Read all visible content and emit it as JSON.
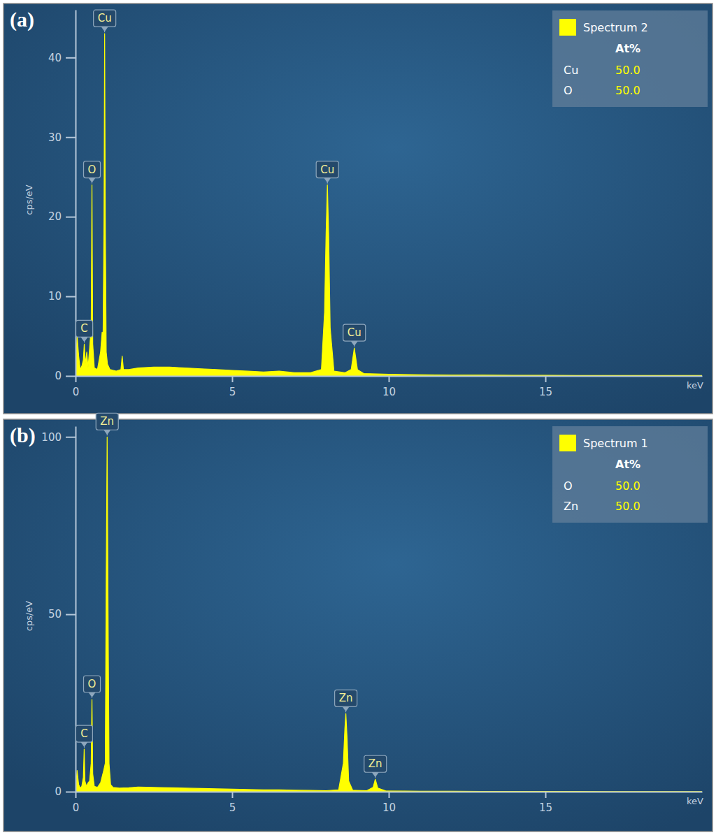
{
  "chart_data": [
    {
      "type": "area",
      "title": "(a)",
      "x_label": "keV",
      "y_label": "cps/eV",
      "x": [
        0,
        0.05,
        0.1,
        0.15,
        0.2,
        0.25,
        0.28,
        0.31,
        0.36,
        0.4,
        0.45,
        0.5,
        0.525,
        0.55,
        0.6,
        0.7,
        0.8,
        0.85,
        0.88,
        0.91,
        0.93,
        0.95,
        0.98,
        1.02,
        1.1,
        1.3,
        1.45,
        1.49,
        1.53,
        1.7,
        2,
        2.5,
        3,
        3.5,
        4,
        4.5,
        5,
        5.5,
        6,
        6.5,
        7,
        7.5,
        7.85,
        7.95,
        8.0,
        8.04,
        8.08,
        8.13,
        8.25,
        8.6,
        8.8,
        8.9,
        9.0,
        9.2,
        9.6,
        10,
        11,
        12,
        13,
        14,
        15,
        16,
        17,
        18,
        19,
        20
      ],
      "series": [
        {
          "name": "Spectrum 2",
          "color": "#ffff00",
          "values": [
            0,
            5.2,
            2.5,
            0.8,
            1.2,
            2,
            4,
            1.5,
            3,
            1,
            3.5,
            6,
            24,
            4,
            1,
            0.8,
            3,
            5.5,
            5,
            20,
            43,
            20,
            3,
            1.5,
            0.8,
            0.6,
            0.8,
            2.5,
            0.8,
            0.8,
            1,
            1.1,
            1.1,
            1,
            0.9,
            0.8,
            0.7,
            0.6,
            0.5,
            0.6,
            0.4,
            0.4,
            0.8,
            8,
            18,
            24,
            18,
            6,
            0.6,
            0.4,
            0.8,
            3.5,
            0.8,
            0.3,
            0.25,
            0.2,
            0.15,
            0.1,
            0.1,
            0.08,
            0.07,
            0.06,
            0.05,
            0.05,
            0.05,
            0.05
          ]
        }
      ],
      "xlim": [
        0,
        20
      ],
      "xticks": [
        0,
        5,
        10,
        15
      ],
      "ylim": [
        0,
        46
      ],
      "yticks": [
        0,
        10,
        20,
        30,
        40
      ],
      "grid": false,
      "legend": "upper right",
      "composition": {
        "header": "At%",
        "rows": [
          {
            "element": "Cu",
            "value": 50,
            "label": "50.0"
          },
          {
            "element": "O",
            "value": 50,
            "label": "50.0"
          }
        ]
      },
      "annotations": [
        {
          "text": "C",
          "x": 0.28,
          "y": 4
        },
        {
          "text": "O",
          "x": 0.525,
          "y": 24
        },
        {
          "text": "Cu",
          "x": 0.93,
          "y": 43
        },
        {
          "text": "Cu",
          "x": 8.04,
          "y": 24
        },
        {
          "text": "Cu",
          "x": 8.9,
          "y": 3.5
        }
      ]
    },
    {
      "type": "area",
      "title": "(b)",
      "x_label": "keV",
      "y_label": "cps/eV",
      "x": [
        0,
        0.05,
        0.1,
        0.15,
        0.2,
        0.25,
        0.277,
        0.3,
        0.35,
        0.4,
        0.45,
        0.5,
        0.525,
        0.55,
        0.6,
        0.7,
        0.8,
        0.9,
        0.95,
        0.98,
        1.01,
        1.04,
        1.07,
        1.12,
        1.2,
        1.4,
        1.7,
        2,
        2.5,
        3,
        3.5,
        4,
        4.5,
        5,
        5.5,
        6,
        6.5,
        7,
        7.5,
        8,
        8.4,
        8.55,
        8.6,
        8.63,
        8.67,
        8.72,
        8.85,
        9.3,
        9.5,
        9.57,
        9.65,
        9.9,
        10.5,
        11,
        12,
        13,
        14,
        15,
        16,
        17,
        18,
        19,
        20
      ],
      "series": [
        {
          "name": "Spectrum 1",
          "color": "#ffff00",
          "values": [
            0,
            6,
            2,
            1,
            1.5,
            4,
            12,
            3,
            1.5,
            2.5,
            3,
            8,
            26,
            5,
            1.5,
            1.2,
            2.5,
            6,
            8,
            60,
            100,
            50,
            8,
            2,
            1.2,
            1,
            1.1,
            1.3,
            1.2,
            1.1,
            1,
            0.9,
            0.8,
            0.7,
            0.6,
            0.5,
            0.5,
            0.4,
            0.35,
            0.3,
            0.5,
            8,
            18,
            22,
            15,
            3,
            0.4,
            0.3,
            1.2,
            3.5,
            1,
            0.25,
            0.2,
            0.15,
            0.12,
            0.1,
            0.08,
            0.07,
            0.06,
            0.05,
            0.05,
            0.05,
            0.05
          ]
        }
      ],
      "xlim": [
        0,
        20
      ],
      "xticks": [
        0,
        5,
        10,
        15
      ],
      "ylim": [
        0,
        103
      ],
      "yticks": [
        0,
        50,
        100
      ],
      "grid": false,
      "legend": "upper right",
      "composition": {
        "header": "At%",
        "rows": [
          {
            "element": "O",
            "value": 50,
            "label": "50.0"
          },
          {
            "element": "Zn",
            "value": 50,
            "label": "50.0"
          }
        ]
      },
      "annotations": [
        {
          "text": "C",
          "x": 0.277,
          "y": 12
        },
        {
          "text": "O",
          "x": 0.525,
          "y": 26
        },
        {
          "text": "Zn",
          "x": 1.01,
          "y": 100
        },
        {
          "text": "Zn",
          "x": 8.63,
          "y": 22
        },
        {
          "text": "Zn",
          "x": 9.57,
          "y": 3.5
        }
      ]
    }
  ]
}
